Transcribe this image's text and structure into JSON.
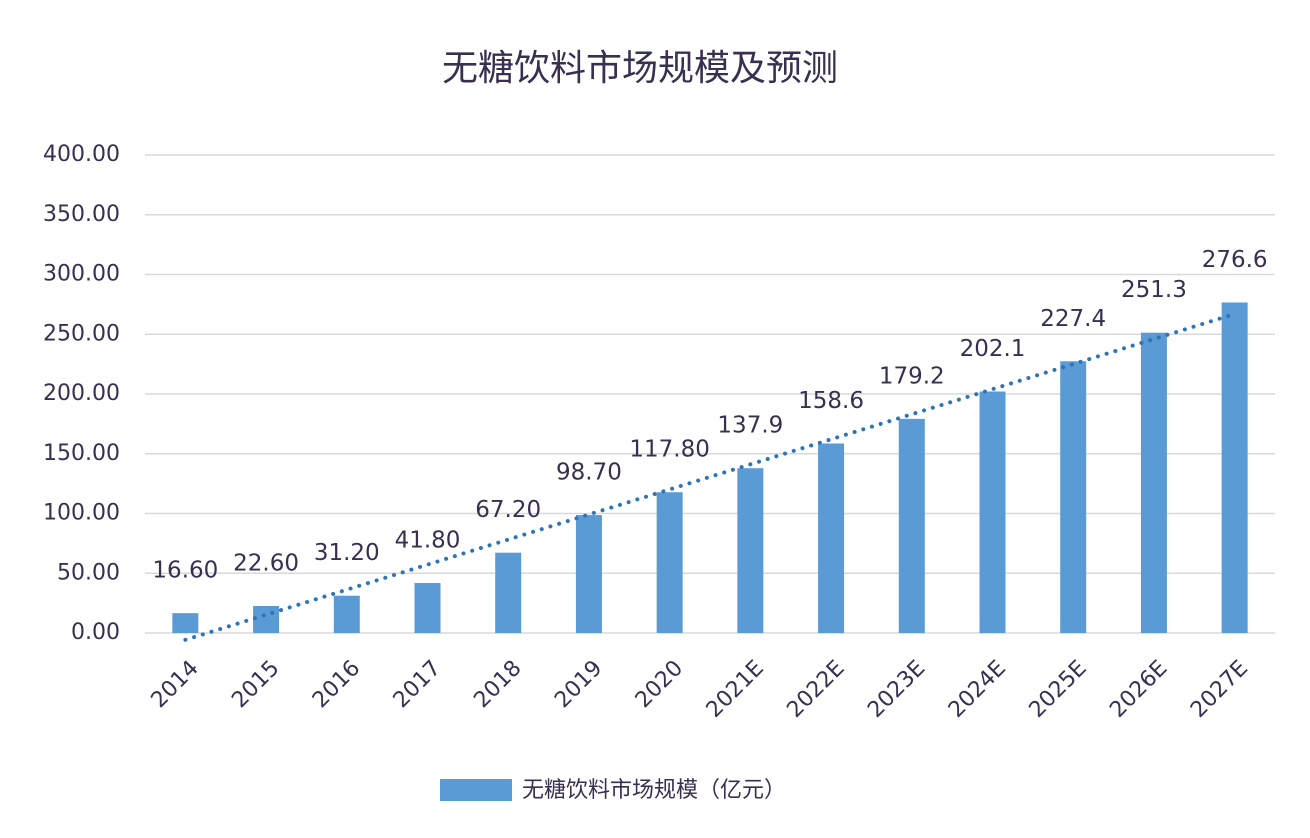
{
  "chart_data": {
    "type": "bar",
    "title": "无糖饮料市场规模及预测",
    "categories": [
      "2014",
      "2015",
      "2016",
      "2017",
      "2018",
      "2019",
      "2020",
      "2021E",
      "2022E",
      "2023E",
      "2024E",
      "2025E",
      "2026E",
      "2027E"
    ],
    "series": [
      {
        "name": "无糖饮料市场规模（亿元）",
        "color": "#5b9bd5",
        "values": [
          16.6,
          22.6,
          31.2,
          41.8,
          67.2,
          98.7,
          117.8,
          137.9,
          158.6,
          179.2,
          202.1,
          227.4,
          251.3,
          276.6
        ],
        "value_labels": [
          "16.60",
          "22.60",
          "31.20",
          "41.80",
          "67.20",
          "98.70",
          "117.80",
          "137.9",
          "158.6",
          "179.2",
          "202.1",
          "227.4",
          "251.3",
          "276.6"
        ]
      }
    ],
    "ylim": [
      0,
      400
    ],
    "yticks": [
      {
        "value": 0,
        "label": "0.00"
      },
      {
        "value": 50,
        "label": "50.00"
      },
      {
        "value": 100,
        "label": "100.00"
      },
      {
        "value": 150,
        "label": "150.00"
      },
      {
        "value": 200,
        "label": "200.00"
      },
      {
        "value": 250,
        "label": "250.00"
      },
      {
        "value": 300,
        "label": "300.00"
      },
      {
        "value": 350,
        "label": "350.00"
      },
      {
        "value": 400,
        "label": "400.00"
      }
    ],
    "grid": true,
    "trendline": true,
    "trendline_color": "#2e75b6",
    "legend": "bottom"
  }
}
